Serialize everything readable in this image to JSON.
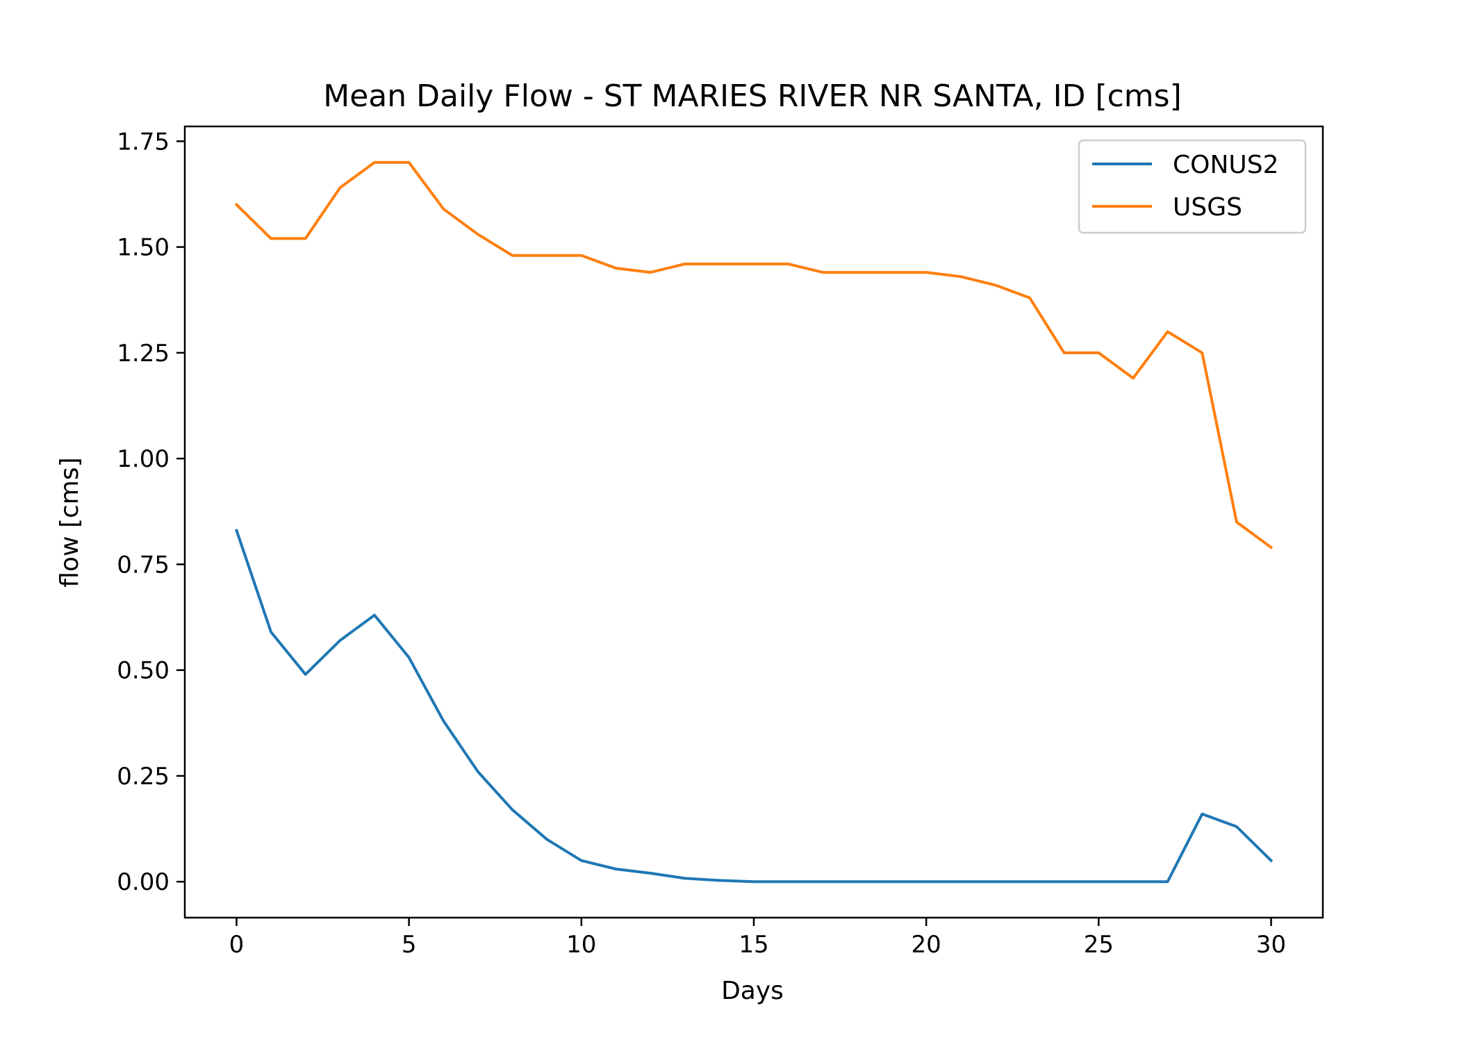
{
  "chart_data": {
    "type": "line",
    "title": "Mean Daily Flow - ST MARIES RIVER NR SANTA, ID [cms]",
    "xlabel": "Days",
    "ylabel": "flow [cms]",
    "xlim": [
      -1.5,
      31.5
    ],
    "ylim": [
      -0.085,
      1.785
    ],
    "x_ticks": [
      0,
      5,
      10,
      15,
      20,
      25,
      30
    ],
    "y_ticks": [
      0.0,
      0.25,
      0.5,
      0.75,
      1.0,
      1.25,
      1.5,
      1.75
    ],
    "y_tick_decimals": 2,
    "grid": false,
    "legend_position": "top-right",
    "x": [
      0,
      1,
      2,
      3,
      4,
      5,
      6,
      7,
      8,
      9,
      10,
      11,
      12,
      13,
      14,
      15,
      16,
      17,
      18,
      19,
      20,
      21,
      22,
      23,
      24,
      25,
      26,
      27,
      28,
      29,
      30
    ],
    "series": [
      {
        "name": "CONUS2",
        "color": "#1f77b4",
        "values": [
          0.83,
          0.59,
          0.49,
          0.57,
          0.63,
          0.53,
          0.38,
          0.26,
          0.17,
          0.1,
          0.05,
          0.03,
          0.02,
          0.008,
          0.003,
          0.0,
          0.0,
          0.0,
          0.0,
          0.0,
          0.0,
          0.0,
          0.0,
          0.0,
          0.0,
          0.0,
          0.0,
          0.0,
          0.16,
          0.13,
          0.05
        ]
      },
      {
        "name": "USGS",
        "color": "#ff7f0e",
        "values": [
          1.6,
          1.52,
          1.52,
          1.64,
          1.7,
          1.7,
          1.59,
          1.53,
          1.48,
          1.48,
          1.48,
          1.45,
          1.44,
          1.46,
          1.46,
          1.46,
          1.46,
          1.44,
          1.44,
          1.44,
          1.44,
          1.43,
          1.41,
          1.38,
          1.25,
          1.25,
          1.19,
          1.3,
          1.25,
          0.85,
          0.79
        ]
      }
    ]
  }
}
